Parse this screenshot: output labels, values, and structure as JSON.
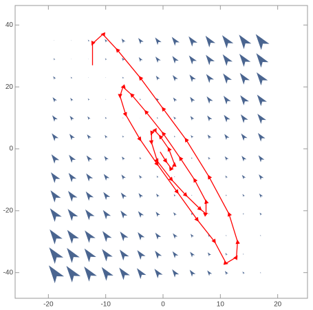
{
  "chart_data": {
    "type": "vector",
    "xlim": [
      -25.8,
      25.2
    ],
    "ylim": [
      -48.3,
      46.3
    ],
    "xticks": [
      -20,
      -10,
      0,
      10,
      20
    ],
    "yticks": [
      -40,
      -20,
      0,
      20,
      40
    ],
    "color": "#4a6590",
    "x": [
      -19,
      -16,
      -13,
      -10,
      -7,
      -4,
      -1,
      2,
      5,
      8,
      11,
      14,
      17
    ],
    "y": [
      35,
      29,
      23,
      16,
      10,
      4,
      -3,
      -9,
      -15,
      -21,
      -28,
      -34,
      -40
    ],
    "u": [
      [
        -1,
        -1,
        -4,
        -6,
        -8,
        -11,
        -13,
        -16,
        -18,
        -20,
        -23,
        -25,
        -28
      ],
      [
        -4,
        -1,
        -1,
        -4,
        -6,
        -8,
        -11,
        -13,
        -16,
        -18,
        -20,
        -23,
        -25
      ],
      [
        -6,
        -4,
        -1,
        -1,
        -4,
        -6,
        -8,
        -11,
        -13,
        -16,
        -18,
        -20,
        -23
      ],
      [
        -9,
        -6,
        -4,
        -2,
        -1,
        -3,
        -6,
        -8,
        -10,
        -13,
        -15,
        -18,
        -20
      ],
      [
        -11,
        -9,
        -6,
        -4,
        -2,
        -1,
        -3,
        -6,
        -8,
        -10,
        -13,
        -15,
        -18
      ],
      [
        -14,
        -11,
        -9,
        -6,
        -4,
        -2,
        -1,
        -3,
        -6,
        -8,
        -10,
        -13,
        -15
      ],
      [
        -16,
        -14,
        -12,
        -9,
        -7,
        -4,
        -2,
        0,
        -3,
        -5,
        -8,
        -10,
        -12
      ],
      [
        -19,
        -16,
        -14,
        -12,
        -9,
        -7,
        -4,
        -2,
        0,
        -3,
        -5,
        -8,
        -10
      ],
      [
        -21,
        -19,
        -16,
        -14,
        -12,
        -9,
        -7,
        -4,
        -2,
        0,
        -3,
        -5,
        -8
      ],
      [
        -24,
        -21,
        -19,
        -16,
        -14,
        -12,
        -9,
        -7,
        -4,
        -2,
        0,
        -3,
        -5
      ],
      [
        -26,
        -24,
        -22,
        -19,
        -17,
        -14,
        -12,
        -10,
        -7,
        -5,
        -2,
        0,
        -2
      ],
      [
        -29,
        -26,
        -24,
        -22,
        -19,
        -17,
        -14,
        -12,
        -10,
        -7,
        -5,
        -2,
        0
      ],
      [
        -31,
        -29,
        -26,
        -24,
        -22,
        -19,
        -17,
        -14,
        -12,
        -10,
        -7,
        -5,
        -2
      ]
    ],
    "v": [
      [
        3,
        3,
        9,
        15,
        21,
        27,
        33,
        39,
        45,
        51,
        57,
        63,
        69
      ],
      [
        9,
        3,
        3,
        9,
        15,
        21,
        27,
        33,
        39,
        45,
        51,
        57,
        63
      ],
      [
        15,
        9,
        3,
        3,
        9,
        15,
        21,
        27,
        33,
        39,
        45,
        51,
        57
      ],
      [
        22,
        16,
        10,
        4,
        2,
        8,
        14,
        20,
        26,
        32,
        38,
        44,
        50
      ],
      [
        28,
        22,
        16,
        10,
        4,
        2,
        8,
        14,
        20,
        26,
        32,
        38,
        44
      ],
      [
        34,
        28,
        22,
        16,
        10,
        4,
        2,
        8,
        14,
        20,
        26,
        32,
        38
      ],
      [
        41,
        35,
        29,
        23,
        17,
        11,
        5,
        1,
        7,
        13,
        19,
        25,
        31
      ],
      [
        47,
        41,
        35,
        29,
        23,
        17,
        11,
        5,
        1,
        7,
        13,
        19,
        25
      ],
      [
        53,
        47,
        41,
        35,
        29,
        23,
        17,
        11,
        5,
        1,
        7,
        13,
        19
      ],
      [
        59,
        53,
        47,
        41,
        35,
        29,
        23,
        17,
        11,
        5,
        1,
        7,
        13
      ],
      [
        66,
        60,
        54,
        48,
        42,
        36,
        30,
        24,
        18,
        12,
        6,
        0,
        6
      ],
      [
        72,
        66,
        60,
        54,
        48,
        42,
        36,
        30,
        24,
        18,
        12,
        6,
        0
      ],
      [
        78,
        72,
        66,
        60,
        54,
        48,
        42,
        36,
        30,
        24,
        18,
        12,
        6
      ]
    ],
    "trajectory": {
      "color": "#ff0000",
      "x": [
        -0.5,
        0.5,
        1.5,
        2,
        1,
        -0.5,
        -1.5,
        -2,
        -2,
        -1,
        1.5,
        4,
        6.5,
        7.5,
        7.5,
        5.5,
        3,
        0,
        -3,
        -5.5,
        -7,
        -7.5,
        -6.5,
        -4,
        -1,
        2.5,
        6,
        9,
        11,
        12.8,
        13,
        11.5,
        8,
        4,
        0,
        -4,
        -8,
        -10.5,
        -12.3,
        -12.3
      ],
      "y": [
        -1,
        -4,
        -6.5,
        -5,
        0,
        4,
        6,
        5,
        2,
        -4,
        -10,
        -15,
        -19.5,
        -21,
        -17,
        -10,
        -3,
        5,
        12,
        17.5,
        20,
        17,
        11,
        3,
        -5,
        -14,
        -23,
        -30,
        -37,
        -35,
        -30,
        -21,
        -9,
        3,
        13,
        23,
        32,
        37,
        34,
        27
      ]
    }
  }
}
